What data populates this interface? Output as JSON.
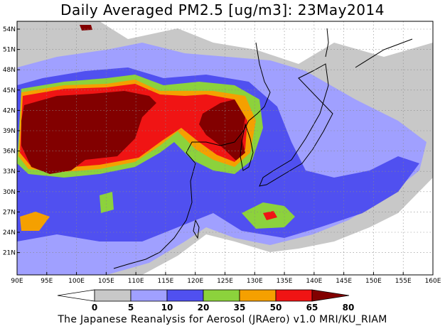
{
  "title": "Daily Averaged PM2.5 [ug/m3]: 23May2014",
  "credit": "The Japanese Reanalysis for Aerosol (JRAero) v1.0 MRI/KU_RIAM",
  "lat_ticks": [
    "54N",
    "51N",
    "48N",
    "45N",
    "42N",
    "39N",
    "36N",
    "33N",
    "30N",
    "27N",
    "24N",
    "21N"
  ],
  "lon_ticks": [
    "90E",
    "95E",
    "100E",
    "105E",
    "110E",
    "115E",
    "120E",
    "125E",
    "130E",
    "135E",
    "140E",
    "145E",
    "150E",
    "155E",
    "160E"
  ],
  "colorbar": {
    "levels": [
      "0",
      "5",
      "10",
      "20",
      "35",
      "50",
      "65",
      "80"
    ],
    "colors": [
      "#ffffff",
      "#c8c8c8",
      "#a0a0ff",
      "#5050f0",
      "#8cd23c",
      "#f5a000",
      "#f01414",
      "#820000"
    ]
  },
  "palette": {
    "c5": "#c8c8c8",
    "c10": "#a0a0ff",
    "c20": "#5050f0",
    "c35": "#8cd23c",
    "c50": "#f5a000",
    "c65": "#f01414",
    "c80": "#820000"
  }
}
